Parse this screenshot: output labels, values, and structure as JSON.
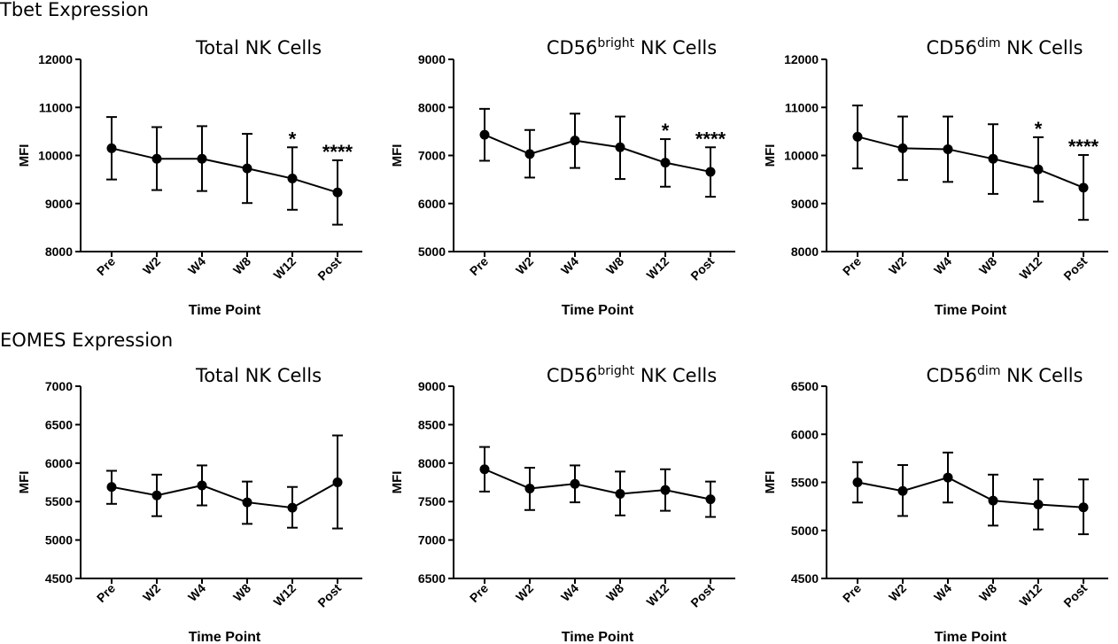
{
  "sections": {
    "tbet": "Tbet Expression",
    "eomes": "EOMES Expression"
  },
  "chart_data": [
    {
      "type": "line",
      "section": "Tbet Expression",
      "title": "Total NK Cells",
      "title_main": "Total NK Cells",
      "title_sup": "",
      "title_rest": "",
      "xlabel": "Time Point",
      "ylabel": "MFI",
      "categories": [
        "Pre",
        "W2",
        "W4",
        "W8",
        "W12",
        "Post"
      ],
      "values": [
        10150,
        9930,
        9930,
        9730,
        9520,
        9230
      ],
      "error_low": [
        9500,
        9280,
        9260,
        9010,
        8870,
        8560
      ],
      "error_high": [
        10800,
        10590,
        10610,
        10450,
        10170,
        9900
      ],
      "significance": [
        "",
        "",
        "",
        "",
        "*",
        "****"
      ],
      "ylim": [
        8000,
        12000
      ],
      "yticks": [
        8000,
        9000,
        10000,
        11000,
        12000
      ],
      "grid": false
    },
    {
      "type": "line",
      "section": "Tbet Expression",
      "title": "CD56bright NK Cells",
      "title_main": "CD56",
      "title_sup": "bright",
      "title_rest": " NK Cells",
      "xlabel": "Time Point",
      "ylabel": "MFI",
      "categories": [
        "Pre",
        "W2",
        "W4",
        "W8",
        "W12",
        "Post"
      ],
      "values": [
        7430,
        7030,
        7310,
        7170,
        6850,
        6660
      ],
      "error_low": [
        6890,
        6540,
        6740,
        6510,
        6350,
        6140
      ],
      "error_high": [
        7970,
        7530,
        7870,
        7810,
        7340,
        7170
      ],
      "significance": [
        "",
        "",
        "",
        "",
        "*",
        "****"
      ],
      "ylim": [
        5000,
        9000
      ],
      "yticks": [
        5000,
        6000,
        7000,
        8000,
        9000
      ],
      "grid": false
    },
    {
      "type": "line",
      "section": "Tbet Expression",
      "title": "CD56dim NK Cells",
      "title_main": "CD56",
      "title_sup": "dim",
      "title_rest": " NK Cells",
      "xlabel": "Time Point",
      "ylabel": "MFI",
      "categories": [
        "Pre",
        "W2",
        "W4",
        "W8",
        "W12",
        "Post"
      ],
      "values": [
        10390,
        10150,
        10130,
        9930,
        9710,
        9330
      ],
      "error_low": [
        9730,
        9490,
        9450,
        9200,
        9040,
        8660
      ],
      "error_high": [
        11040,
        10810,
        10810,
        10650,
        10380,
        10010
      ],
      "significance": [
        "",
        "",
        "",
        "",
        "*",
        "****"
      ],
      "ylim": [
        8000,
        12000
      ],
      "yticks": [
        8000,
        9000,
        10000,
        11000,
        12000
      ],
      "grid": false
    },
    {
      "type": "line",
      "section": "EOMES Expression",
      "title": "Total NK Cells",
      "title_main": "Total NK Cells",
      "title_sup": "",
      "title_rest": "",
      "xlabel": "Time Point",
      "ylabel": "MFI",
      "categories": [
        "Pre",
        "W2",
        "W4",
        "W8",
        "W12",
        "Post"
      ],
      "values": [
        5690,
        5580,
        5710,
        5490,
        5420,
        5750
      ],
      "error_low": [
        5470,
        5310,
        5450,
        5210,
        5160,
        5150
      ],
      "error_high": [
        5900,
        5850,
        5970,
        5760,
        5690,
        6360
      ],
      "significance": [
        "",
        "",
        "",
        "",
        "",
        ""
      ],
      "ylim": [
        4500,
        7000
      ],
      "yticks": [
        4500,
        5000,
        5500,
        6000,
        6500,
        7000
      ],
      "grid": false
    },
    {
      "type": "line",
      "section": "EOMES Expression",
      "title": "CD56bright NK Cells",
      "title_main": "CD56",
      "title_sup": "bright",
      "title_rest": " NK Cells",
      "xlabel": "Time Point",
      "ylabel": "MFI",
      "categories": [
        "Pre",
        "W2",
        "W4",
        "W8",
        "W12",
        "Post"
      ],
      "values": [
        7920,
        7670,
        7730,
        7600,
        7650,
        7530
      ],
      "error_low": [
        7630,
        7390,
        7490,
        7320,
        7380,
        7300
      ],
      "error_high": [
        8210,
        7940,
        7970,
        7890,
        7920,
        7760
      ],
      "significance": [
        "",
        "",
        "",
        "",
        "",
        ""
      ],
      "ylim": [
        6500,
        9000
      ],
      "yticks": [
        6500,
        7000,
        7500,
        8000,
        8500,
        9000
      ],
      "grid": false
    },
    {
      "type": "line",
      "section": "EOMES Expression",
      "title": "CD56dim NK Cells",
      "title_main": "CD56",
      "title_sup": "dim",
      "title_rest": " NK Cells",
      "xlabel": "Time Point",
      "ylabel": "MFI",
      "categories": [
        "Pre",
        "W2",
        "W4",
        "W8",
        "W12",
        "Post"
      ],
      "values": [
        5500,
        5410,
        5550,
        5310,
        5270,
        5240
      ],
      "error_low": [
        5290,
        5150,
        5290,
        5050,
        5010,
        4960
      ],
      "error_high": [
        5710,
        5680,
        5810,
        5580,
        5530,
        5530
      ],
      "significance": [
        "",
        "",
        "",
        "",
        "",
        ""
      ],
      "ylim": [
        4500,
        6500
      ],
      "yticks": [
        4500,
        5000,
        5500,
        6000,
        6500
      ],
      "grid": false
    }
  ]
}
